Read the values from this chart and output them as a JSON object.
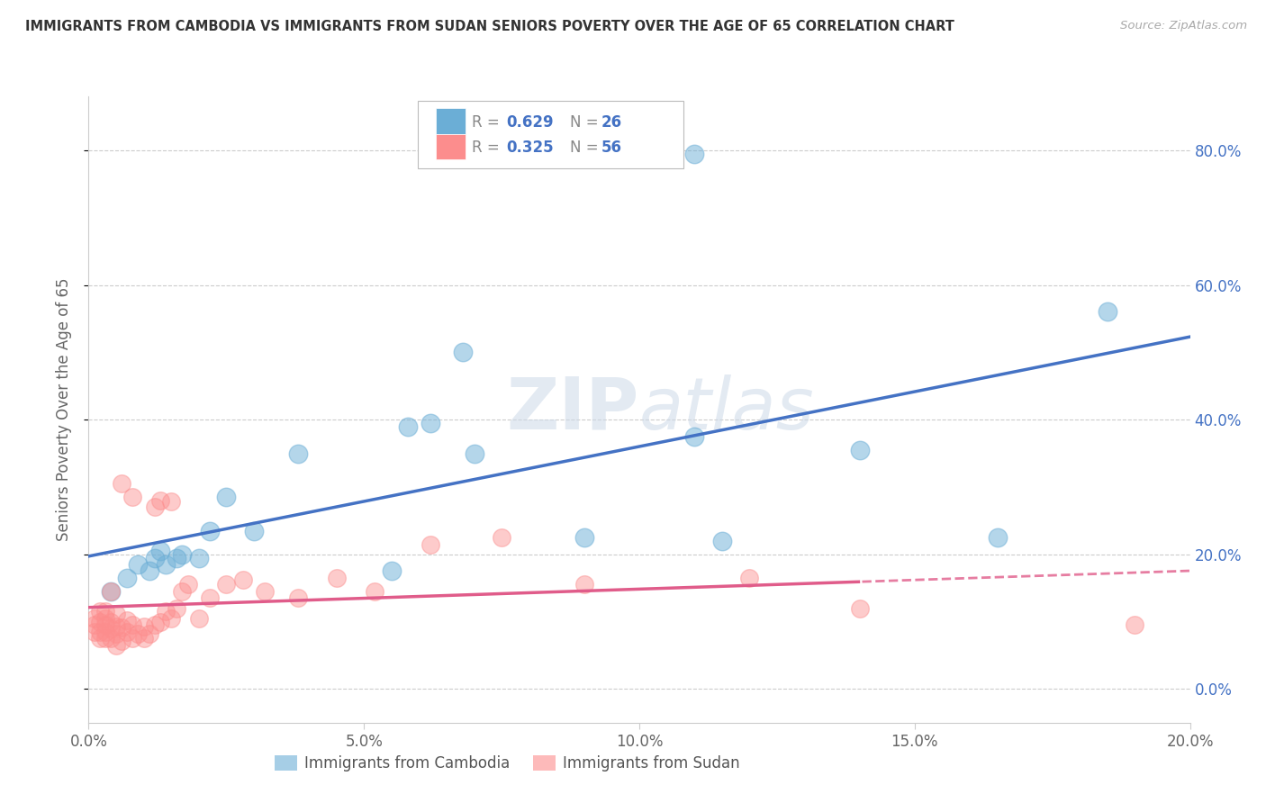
{
  "title": "IMMIGRANTS FROM CAMBODIA VS IMMIGRANTS FROM SUDAN SENIORS POVERTY OVER THE AGE OF 65 CORRELATION CHART",
  "source": "Source: ZipAtlas.com",
  "ylabel": "Seniors Poverty Over the Age of 65",
  "xlim": [
    0.0,
    0.2
  ],
  "ylim": [
    -0.05,
    0.88
  ],
  "yticks_right": [
    0.0,
    0.2,
    0.4,
    0.6,
    0.8
  ],
  "ytick_labels_right": [
    "0.0%",
    "20.0%",
    "40.0%",
    "60.0%",
    "80.0%"
  ],
  "xticks": [
    0.0,
    0.05,
    0.1,
    0.15,
    0.2
  ],
  "xtick_labels": [
    "0.0%",
    "5.0%",
    "10.0%",
    "15.0%",
    "20.0%"
  ],
  "color_cambodia": "#6baed6",
  "color_sudan": "#fc8d8d",
  "color_cam_line": "#4472c4",
  "color_sud_line": "#e05c8a",
  "legend_text_color": "#4472c4",
  "watermark": "ZIPAtlas",
  "cambodia_x": [
    0.004,
    0.007,
    0.009,
    0.011,
    0.012,
    0.013,
    0.014,
    0.016,
    0.017,
    0.02,
    0.022,
    0.025,
    0.03,
    0.038,
    0.055,
    0.058,
    0.062,
    0.068,
    0.07,
    0.09,
    0.11,
    0.115,
    0.14,
    0.165,
    0.185,
    0.11
  ],
  "cambodia_y": [
    0.145,
    0.165,
    0.185,
    0.175,
    0.195,
    0.205,
    0.185,
    0.195,
    0.2,
    0.195,
    0.235,
    0.285,
    0.235,
    0.35,
    0.175,
    0.39,
    0.395,
    0.5,
    0.35,
    0.225,
    0.375,
    0.22,
    0.355,
    0.225,
    0.56,
    0.795
  ],
  "sudan_x": [
    0.001,
    0.001,
    0.001,
    0.002,
    0.002,
    0.002,
    0.002,
    0.003,
    0.003,
    0.003,
    0.003,
    0.003,
    0.004,
    0.004,
    0.004,
    0.004,
    0.005,
    0.005,
    0.005,
    0.005,
    0.006,
    0.006,
    0.006,
    0.007,
    0.007,
    0.008,
    0.008,
    0.008,
    0.009,
    0.01,
    0.01,
    0.011,
    0.012,
    0.012,
    0.013,
    0.013,
    0.014,
    0.015,
    0.015,
    0.016,
    0.017,
    0.018,
    0.02,
    0.022,
    0.025,
    0.028,
    0.032,
    0.038,
    0.045,
    0.052,
    0.062,
    0.075,
    0.09,
    0.12,
    0.14,
    0.19
  ],
  "sudan_y": [
    0.085,
    0.095,
    0.105,
    0.075,
    0.085,
    0.1,
    0.115,
    0.075,
    0.085,
    0.095,
    0.105,
    0.115,
    0.075,
    0.09,
    0.1,
    0.145,
    0.065,
    0.082,
    0.093,
    0.112,
    0.072,
    0.092,
    0.305,
    0.085,
    0.102,
    0.075,
    0.095,
    0.285,
    0.082,
    0.075,
    0.093,
    0.082,
    0.095,
    0.27,
    0.1,
    0.28,
    0.115,
    0.105,
    0.278,
    0.12,
    0.145,
    0.155,
    0.105,
    0.135,
    0.155,
    0.162,
    0.145,
    0.135,
    0.165,
    0.145,
    0.215,
    0.225,
    0.155,
    0.165,
    0.12,
    0.095
  ]
}
